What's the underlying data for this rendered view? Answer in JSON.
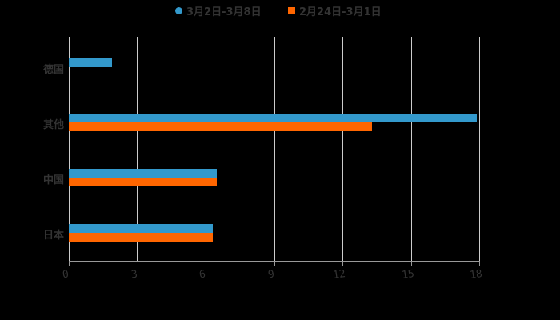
{
  "legend": [
    {
      "label": "3月2日-3月8日",
      "color": "#3399CC",
      "marker": "circle"
    },
    {
      "label": "2月24日-3月1日",
      "color": "#FF6600",
      "marker": "square"
    }
  ],
  "chart_data": {
    "type": "bar",
    "orientation": "horizontal",
    "title": "",
    "categories": [
      "德国",
      "其他",
      "中国",
      "日本"
    ],
    "series": [
      {
        "name": "3月2日-3月8日",
        "color": "#3399CC",
        "values": [
          1.9,
          17.9,
          6.5,
          6.3
        ]
      },
      {
        "name": "2月24日-3月1日",
        "color": "#FF6600",
        "values": [
          0,
          13.3,
          6.5,
          6.3
        ]
      }
    ],
    "xlabel": "",
    "ylabel": "",
    "xlim": [
      0,
      18
    ],
    "xticks": [
      "0",
      "3",
      "6",
      "9",
      "12",
      "15",
      "18"
    ],
    "grid": true,
    "legend_position": "top"
  }
}
